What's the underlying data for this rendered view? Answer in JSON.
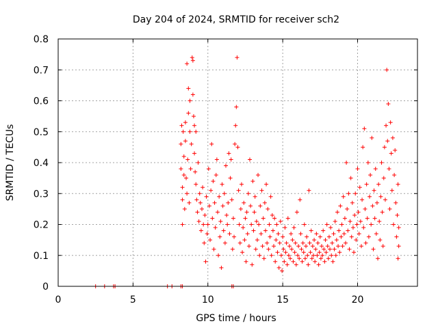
{
  "chart_data": {
    "type": "scatter",
    "title": "Day 204 of 2024, SRMTID for receiver sch2",
    "xlabel": "GPS time / hours",
    "ylabel": "SRMTID / TECUs",
    "xlim": [
      0,
      24
    ],
    "ylim": [
      0,
      0.8
    ],
    "x_ticks": [
      0,
      5,
      10,
      15,
      20
    ],
    "y_ticks": [
      0,
      0.1,
      0.2,
      0.3,
      0.4,
      0.5,
      0.6,
      0.7,
      0.8
    ],
    "x_tick_labels": [
      "0",
      "5",
      "10",
      "15",
      "20"
    ],
    "y_tick_labels": [
      "0",
      "0.1",
      "0.2",
      "0.3",
      "0.4",
      "0.5",
      "0.6",
      "0.7",
      "0.8"
    ],
    "grid": true,
    "marker": "plus",
    "colors": {
      "marker": "#ff0000",
      "grid": "#a0a0a0",
      "axis": "#000000"
    },
    "series": [
      {
        "name": "SRMTID",
        "points": [
          [
            2.5,
            0.0
          ],
          [
            3.1,
            0.0
          ],
          [
            3.7,
            0.0
          ],
          [
            3.8,
            0.0
          ],
          [
            7.3,
            0.0
          ],
          [
            7.6,
            0.0
          ],
          [
            8.2,
            0.0
          ],
          [
            8.3,
            0.0
          ],
          [
            11.6,
            0.0
          ],
          [
            11.7,
            0.0
          ],
          [
            8.2,
            0.46
          ],
          [
            8.2,
            0.38
          ],
          [
            8.25,
            0.52
          ],
          [
            8.3,
            0.32
          ],
          [
            8.3,
            0.28
          ],
          [
            8.3,
            0.2
          ],
          [
            8.35,
            0.5
          ],
          [
            8.4,
            0.42
          ],
          [
            8.4,
            0.36
          ],
          [
            8.45,
            0.25
          ],
          [
            8.5,
            0.53
          ],
          [
            8.5,
            0.47
          ],
          [
            8.55,
            0.35
          ],
          [
            8.6,
            0.72
          ],
          [
            8.6,
            0.3
          ],
          [
            8.65,
            0.41
          ],
          [
            8.7,
            0.64
          ],
          [
            8.7,
            0.56
          ],
          [
            8.75,
            0.27
          ],
          [
            8.8,
            0.6
          ],
          [
            8.8,
            0.5
          ],
          [
            8.85,
            0.38
          ],
          [
            8.9,
            0.46
          ],
          [
            8.95,
            0.74
          ],
          [
            9.0,
            0.73
          ],
          [
            9.0,
            0.62
          ],
          [
            9.05,
            0.55
          ],
          [
            9.1,
            0.52
          ],
          [
            9.1,
            0.43
          ],
          [
            9.15,
            0.37
          ],
          [
            9.2,
            0.5
          ],
          [
            9.2,
            0.33
          ],
          [
            9.25,
            0.28
          ],
          [
            9.3,
            0.24
          ],
          [
            9.35,
            0.4
          ],
          [
            9.4,
            0.21
          ],
          [
            9.45,
            0.3
          ],
          [
            9.5,
            0.27
          ],
          [
            9.55,
            0.18
          ],
          [
            9.6,
            0.25
          ],
          [
            9.65,
            0.32
          ],
          [
            9.7,
            0.2
          ],
          [
            9.75,
            0.14
          ],
          [
            9.8,
            0.23
          ],
          [
            9.85,
            0.08
          ],
          [
            9.9,
            0.29
          ],
          [
            9.95,
            0.17
          ],
          [
            10.0,
            0.2
          ],
          [
            10.05,
            0.38
          ],
          [
            10.1,
            0.26
          ],
          [
            10.15,
            0.15
          ],
          [
            10.2,
            0.31
          ],
          [
            10.25,
            0.46
          ],
          [
            10.3,
            0.22
          ],
          [
            10.35,
            0.34
          ],
          [
            10.4,
            0.12
          ],
          [
            10.45,
            0.27
          ],
          [
            10.5,
            0.19
          ],
          [
            10.55,
            0.36
          ],
          [
            10.6,
            0.41
          ],
          [
            10.65,
            0.24
          ],
          [
            10.7,
            0.1
          ],
          [
            10.75,
            0.29
          ],
          [
            10.8,
            0.16
          ],
          [
            10.85,
            0.21
          ],
          [
            10.9,
            0.06
          ],
          [
            10.95,
            0.33
          ],
          [
            11.0,
            0.26
          ],
          [
            11.05,
            0.18
          ],
          [
            11.1,
            0.3
          ],
          [
            11.15,
            0.14
          ],
          [
            11.2,
            0.39
          ],
          [
            11.25,
            0.23
          ],
          [
            11.3,
            0.2
          ],
          [
            11.35,
            0.27
          ],
          [
            11.4,
            0.43
          ],
          [
            11.45,
            0.17
          ],
          [
            11.5,
            0.35
          ],
          [
            11.55,
            0.41
          ],
          [
            11.6,
            0.28
          ],
          [
            11.65,
            0.12
          ],
          [
            11.7,
            0.22
          ],
          [
            11.75,
            0.16
          ],
          [
            11.8,
            0.46
          ],
          [
            11.85,
            0.52
          ],
          [
            11.9,
            0.58
          ],
          [
            11.95,
            0.74
          ],
          [
            12.0,
            0.45
          ],
          [
            12.05,
            0.31
          ],
          [
            12.1,
            0.2
          ],
          [
            12.15,
            0.14
          ],
          [
            12.2,
            0.25
          ],
          [
            12.25,
            0.33
          ],
          [
            12.3,
            0.11
          ],
          [
            12.35,
            0.19
          ],
          [
            12.4,
            0.27
          ],
          [
            12.45,
            0.15
          ],
          [
            12.5,
            0.22
          ],
          [
            12.55,
            0.08
          ],
          [
            12.6,
            0.24
          ],
          [
            12.65,
            0.17
          ],
          [
            12.7,
            0.3
          ],
          [
            12.75,
            0.13
          ],
          [
            12.8,
            0.41
          ],
          [
            12.85,
            0.26
          ],
          [
            12.9,
            0.2
          ],
          [
            12.95,
            0.07
          ],
          [
            13.0,
            0.34
          ],
          [
            13.05,
            0.18
          ],
          [
            13.1,
            0.24
          ],
          [
            13.15,
            0.29
          ],
          [
            13.2,
            0.12
          ],
          [
            13.25,
            0.21
          ],
          [
            13.3,
            0.15
          ],
          [
            13.35,
            0.36
          ],
          [
            13.4,
            0.2
          ],
          [
            13.45,
            0.1
          ],
          [
            13.5,
            0.26
          ],
          [
            13.55,
            0.17
          ],
          [
            13.6,
            0.31
          ],
          [
            13.65,
            0.13
          ],
          [
            13.7,
            0.22
          ],
          [
            13.75,
            0.09
          ],
          [
            13.8,
            0.27
          ],
          [
            13.85,
            0.18
          ],
          [
            13.9,
            0.33
          ],
          [
            13.95,
            0.14
          ],
          [
            14.0,
            0.25
          ],
          [
            14.05,
            0.12
          ],
          [
            14.1,
            0.2
          ],
          [
            14.15,
            0.16
          ],
          [
            14.2,
            0.29
          ],
          [
            14.25,
            0.1
          ],
          [
            14.3,
            0.23
          ],
          [
            14.35,
            0.18
          ],
          [
            14.4,
            0.13
          ],
          [
            14.45,
            0.22
          ],
          [
            14.5,
            0.08
          ],
          [
            14.55,
            0.15
          ],
          [
            14.6,
            0.2
          ],
          [
            14.65,
            0.11
          ],
          [
            14.7,
            0.17
          ],
          [
            14.75,
            0.06
          ],
          [
            14.8,
            0.14
          ],
          [
            14.85,
            0.21
          ],
          [
            14.9,
            0.1
          ],
          [
            14.95,
            0.05
          ],
          [
            15.0,
            0.16
          ],
          [
            15.05,
            0.12
          ],
          [
            15.1,
            0.08
          ],
          [
            15.15,
            0.19
          ],
          [
            15.2,
            0.11
          ],
          [
            15.25,
            0.14
          ],
          [
            15.3,
            0.07
          ],
          [
            15.35,
            0.22
          ],
          [
            15.4,
            0.1
          ],
          [
            15.45,
            0.13
          ],
          [
            15.5,
            0.09
          ],
          [
            15.55,
            0.17
          ],
          [
            15.6,
            0.12
          ],
          [
            15.65,
            0.15
          ],
          [
            15.7,
            0.08
          ],
          [
            15.75,
            0.19
          ],
          [
            15.8,
            0.11
          ],
          [
            15.85,
            0.14
          ],
          [
            15.9,
            0.07
          ],
          [
            15.95,
            0.24
          ],
          [
            16.0,
            0.1
          ],
          [
            16.05,
            0.13
          ],
          [
            16.1,
            0.09
          ],
          [
            16.15,
            0.28
          ],
          [
            16.2,
            0.17
          ],
          [
            16.25,
            0.12
          ],
          [
            16.3,
            0.08
          ],
          [
            16.35,
            0.14
          ],
          [
            16.4,
            0.11
          ],
          [
            16.45,
            0.2
          ],
          [
            16.5,
            0.09
          ],
          [
            16.55,
            0.13
          ],
          [
            16.6,
            0.16
          ],
          [
            16.65,
            0.1
          ],
          [
            16.7,
            0.07
          ],
          [
            16.75,
            0.31
          ],
          [
            16.8,
            0.14
          ],
          [
            16.85,
            0.11
          ],
          [
            16.9,
            0.18
          ],
          [
            16.95,
            0.09
          ],
          [
            17.0,
            0.13
          ],
          [
            17.05,
            0.1
          ],
          [
            17.1,
            0.15
          ],
          [
            17.15,
            0.08
          ],
          [
            17.2,
            0.12
          ],
          [
            17.25,
            0.17
          ],
          [
            17.3,
            0.1
          ],
          [
            17.35,
            0.14
          ],
          [
            17.4,
            0.07
          ],
          [
            17.45,
            0.11
          ],
          [
            17.5,
            0.16
          ],
          [
            17.55,
            0.09
          ],
          [
            17.6,
            0.13
          ],
          [
            17.65,
            0.1
          ],
          [
            17.7,
            0.18
          ],
          [
            17.75,
            0.12
          ],
          [
            17.8,
            0.08
          ],
          [
            17.85,
            0.15
          ],
          [
            17.9,
            0.11
          ],
          [
            17.95,
            0.2
          ],
          [
            18.0,
            0.13
          ],
          [
            18.05,
            0.09
          ],
          [
            18.1,
            0.16
          ],
          [
            18.15,
            0.12
          ],
          [
            18.2,
            0.19
          ],
          [
            18.25,
            0.1
          ],
          [
            18.3,
            0.14
          ],
          [
            18.35,
            0.08
          ],
          [
            18.4,
            0.17
          ],
          [
            18.45,
            0.12
          ],
          [
            18.5,
            0.21
          ],
          [
            18.55,
            0.1
          ],
          [
            18.6,
            0.15
          ],
          [
            18.65,
            0.24
          ],
          [
            18.7,
            0.13
          ],
          [
            18.75,
            0.18
          ],
          [
            18.8,
            0.11
          ],
          [
            18.85,
            0.26
          ],
          [
            18.9,
            0.16
          ],
          [
            18.95,
            0.2
          ],
          [
            19.0,
            0.13
          ],
          [
            19.05,
            0.29
          ],
          [
            19.1,
            0.17
          ],
          [
            19.15,
            0.22
          ],
          [
            19.2,
            0.14
          ],
          [
            19.25,
            0.4
          ],
          [
            19.3,
            0.25
          ],
          [
            19.35,
            0.18
          ],
          [
            19.4,
            0.3
          ],
          [
            19.45,
            0.12
          ],
          [
            19.5,
            0.21
          ],
          [
            19.55,
            0.35
          ],
          [
            19.6,
            0.16
          ],
          [
            19.65,
            0.27
          ],
          [
            19.7,
            0.19
          ],
          [
            19.75,
            0.11
          ],
          [
            19.8,
            0.23
          ],
          [
            19.85,
            0.3
          ],
          [
            19.9,
            0.15
          ],
          [
            19.95,
            0.2
          ],
          [
            20.0,
            0.38
          ],
          [
            20.05,
            0.24
          ],
          [
            20.1,
            0.17
          ],
          [
            20.15,
            0.32
          ],
          [
            20.2,
            0.21
          ],
          [
            20.25,
            0.13
          ],
          [
            20.3,
            0.28
          ],
          [
            20.35,
            0.45
          ],
          [
            20.4,
            0.19
          ],
          [
            20.45,
            0.51
          ],
          [
            20.5,
            0.25
          ],
          [
            20.55,
            0.14
          ],
          [
            20.6,
            0.33
          ],
          [
            20.65,
            0.22
          ],
          [
            20.7,
            0.4
          ],
          [
            20.75,
            0.16
          ],
          [
            20.8,
            0.29
          ],
          [
            20.85,
            0.36
          ],
          [
            20.9,
            0.2
          ],
          [
            20.95,
            0.48
          ],
          [
            21.0,
            0.26
          ],
          [
            21.05,
            0.12
          ],
          [
            21.1,
            0.31
          ],
          [
            21.15,
            0.22
          ],
          [
            21.2,
            0.38
          ],
          [
            21.25,
            0.17
          ],
          [
            21.3,
            0.27
          ],
          [
            21.35,
            0.09
          ],
          [
            21.4,
            0.33
          ],
          [
            21.45,
            0.21
          ],
          [
            21.5,
            0.15
          ],
          [
            21.55,
            0.29
          ],
          [
            21.6,
            0.4
          ],
          [
            21.65,
            0.24
          ],
          [
            21.7,
            0.13
          ],
          [
            21.75,
            0.35
          ],
          [
            21.8,
            0.45
          ],
          [
            21.85,
            0.28
          ],
          [
            21.9,
            0.52
          ],
          [
            21.95,
            0.7
          ],
          [
            22.0,
            0.47
          ],
          [
            22.05,
            0.59
          ],
          [
            22.1,
            0.38
          ],
          [
            22.15,
            0.25
          ],
          [
            22.2,
            0.53
          ],
          [
            22.25,
            0.43
          ],
          [
            22.3,
            0.31
          ],
          [
            22.35,
            0.48
          ],
          [
            22.4,
            0.2
          ],
          [
            22.45,
            0.36
          ],
          [
            22.5,
            0.44
          ],
          [
            22.55,
            0.27
          ],
          [
            22.6,
            0.16
          ],
          [
            22.65,
            0.23
          ],
          [
            22.7,
            0.09
          ],
          [
            22.7,
            0.33
          ],
          [
            22.75,
            0.19
          ],
          [
            22.75,
            0.13
          ]
        ]
      }
    ]
  }
}
